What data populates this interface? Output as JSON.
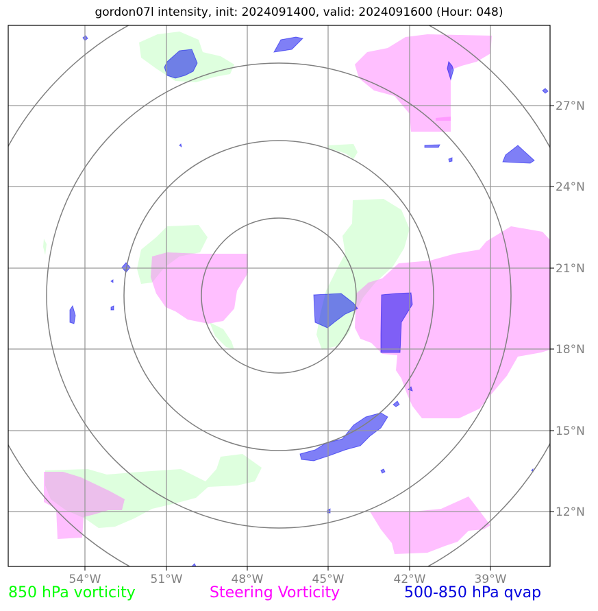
{
  "title": "gordon07l intensity, init: 2024091400, valid: 2024091600 (Hour: 048)",
  "x_ticks": [
    "54°W",
    "51°W",
    "48°W",
    "45°W",
    "42°W",
    "39°W"
  ],
  "y_ticks": [
    "27°N",
    "24°N",
    "21°N",
    "18°N",
    "15°N",
    "12°N"
  ],
  "legend": {
    "vort850": "850 hPa vorticity",
    "steering": "Steering Vorticity",
    "qvap": "500-850 hPa qvap"
  },
  "colors": {
    "vort850": "#00ff00",
    "steering": "#ff00ff",
    "qvap": "#0000dd",
    "frame": "#000000",
    "grid": "#999999",
    "rings": "#808080",
    "tick_text": "#808080"
  }
}
